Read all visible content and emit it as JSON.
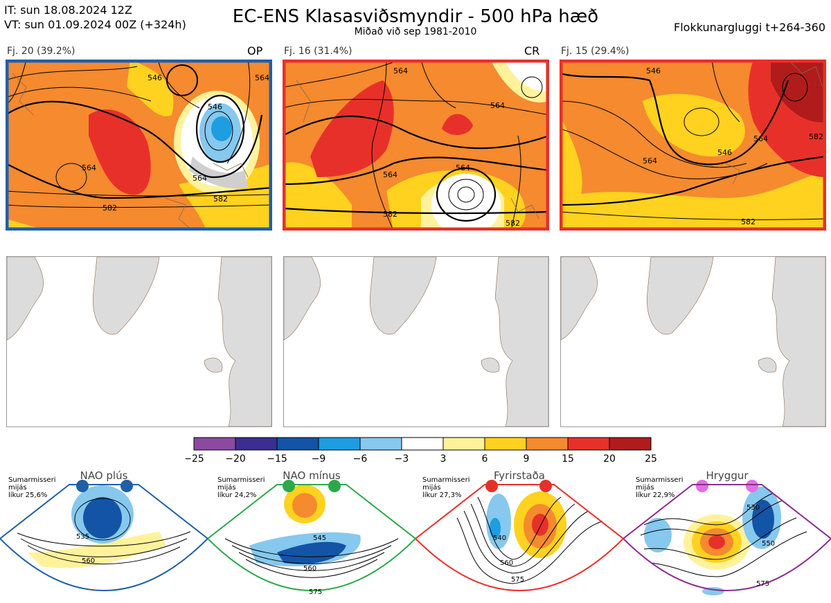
{
  "header": {
    "it_line": "IT: sun 18.08.2024 12Z",
    "vt_line": "VT: sun 01.09.2024 00Z  (+324h)",
    "title": "EC-ENS Klasasviðsmyndir - 500 hPa hæð",
    "subtitle": "Miðað við sep 1981-2010",
    "window": "Flokkunargluggi t+264-360"
  },
  "panels": [
    {
      "label": "Fj. 20 (39.2%)",
      "tag": "OP",
      "frame_color": "#1f5fa8",
      "contours": [
        "564",
        "546",
        "546",
        "564",
        "582",
        "582",
        "564"
      ]
    },
    {
      "label": "Fj. 16 (31.4%)",
      "tag": "CR",
      "frame_color": "#e8302a",
      "contours": [
        "564",
        "564",
        "564",
        "564",
        "582",
        "582"
      ]
    },
    {
      "label": "Fj. 15 (29.4%)",
      "tag": "",
      "frame_color": "#e8302a",
      "contours": [
        "546",
        "564",
        "546",
        "564",
        "582",
        "582"
      ]
    }
  ],
  "legend": {
    "ticks": [
      "−25",
      "−20",
      "−15",
      "−9",
      "−6",
      "−3",
      "3",
      "6",
      "9",
      "15",
      "20",
      "25"
    ],
    "colors": [
      "#8b4aa0",
      "#3b2e91",
      "#1354a6",
      "#1c9ee0",
      "#86c8ee",
      "#ffffff",
      "#fff29b",
      "#ffd21f",
      "#f58a2f",
      "#e8302a",
      "#b01c1c"
    ]
  },
  "regimes": [
    {
      "name": "NAO plús",
      "info": [
        "Sumarmisseri",
        "mijás",
        "líkur 25,6%"
      ],
      "color": "#1f5fa8",
      "contours": [
        "535",
        "560"
      ]
    },
    {
      "name": "NAO mínus",
      "info": [
        "Sumarmisseri",
        "mijás",
        "líkur 24,2%"
      ],
      "color": "#2ca84a",
      "contours": [
        "545",
        "560",
        "575"
      ]
    },
    {
      "name": "Fyrirstaða",
      "info": [
        "Sumarmisseri",
        "mijás",
        "líkur 27,3%"
      ],
      "color": "#e8302a",
      "contours": [
        "540",
        "560",
        "575"
      ]
    },
    {
      "name": "Hryggur",
      "info": [
        "Sumarmisseri",
        "mijás",
        "líkur 22,9%"
      ],
      "color": "#8a2c8f",
      "contours": [
        "530",
        "550",
        "575"
      ]
    }
  ]
}
